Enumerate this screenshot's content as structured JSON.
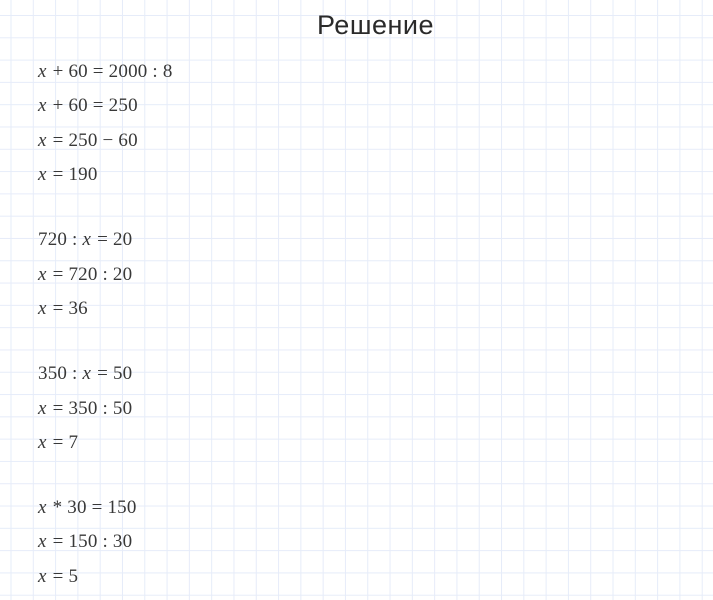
{
  "page": {
    "title": "Решение"
  },
  "colors": {
    "background": "#ffffff",
    "grid_line": "#e6ecf9",
    "title_text": "#2a2a2a",
    "equation_text": "#383838"
  },
  "equation_blocks": [
    {
      "lines": [
        "x + 60 = 2000 : 8",
        "x + 60 = 250",
        "x = 250 − 60",
        "x = 190"
      ]
    },
    {
      "lines": [
        "720 : x = 20",
        "x = 720 : 20",
        "x = 36"
      ]
    },
    {
      "lines": [
        "350 : x = 50",
        "x = 350 : 50",
        "x = 7"
      ]
    },
    {
      "lines": [
        "x * 30 = 150",
        "x = 150 : 30",
        "x = 5"
      ]
    }
  ]
}
